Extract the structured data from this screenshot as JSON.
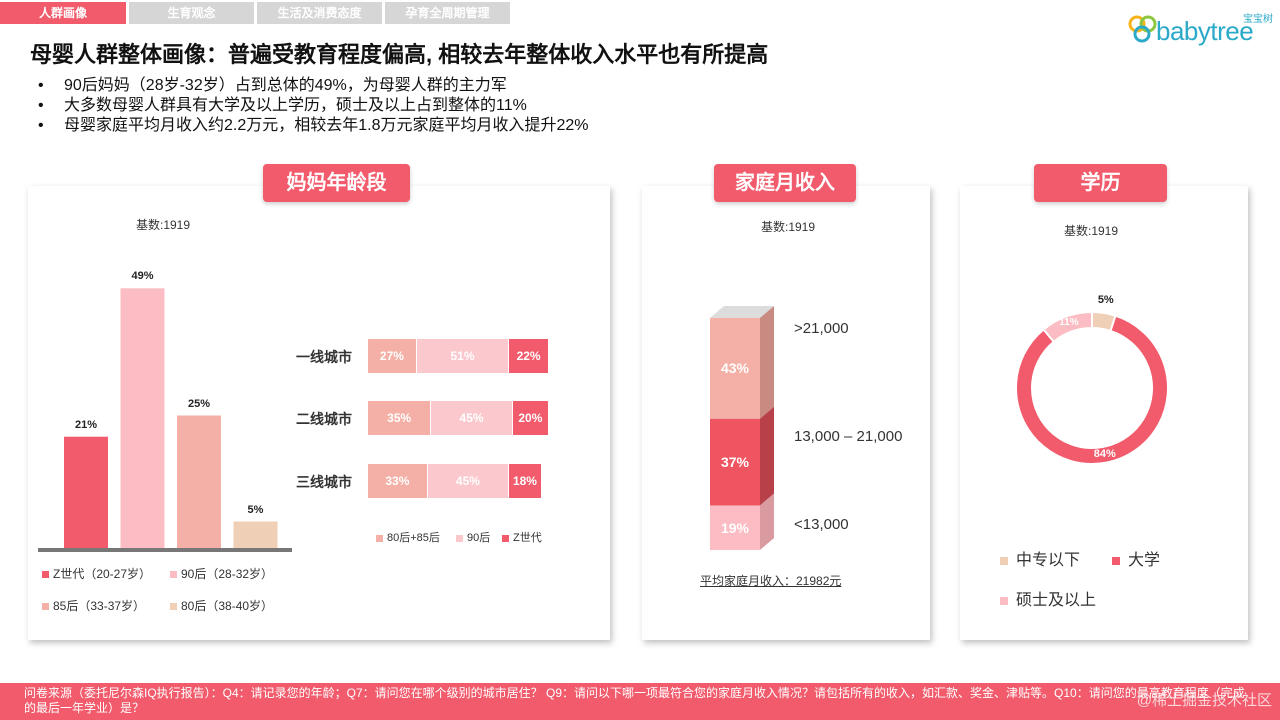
{
  "tabs": [
    "人群画像",
    "生育观念",
    "生活及消费态度",
    "孕育全周期管理"
  ],
  "logo": {
    "small": "宝宝树",
    "text": "babytree"
  },
  "title": "母婴人群整体画像：普遍受教育程度偏高, 相较去年整体收入水平也有所提高",
  "bullets": [
    "90后妈妈（28岁-32岁）占到总体的49%，为母婴人群的主力军",
    "大多数母婴人群具有大学及以上学历，硕士及以上占到整体的11%",
    "母婴家庭平均月收入约2.2万元，相较去年1.8万元家庭平均月收入提升22%"
  ],
  "bullet_marker": "•",
  "age_panel": {
    "title": "妈妈年龄段",
    "base": "基数:1919"
  },
  "income_panel": {
    "title": "家庭月收入",
    "base": "基数:1919",
    "avg_note": "平均家庭月收入：21982元"
  },
  "edu_panel": {
    "title": "学历",
    "base": "基数:1919"
  },
  "footer": "问卷来源（委托尼尔森IQ执行报告）：Q4：请记录您的年龄；Q7：请问您在哪个级别的城市居住？ Q9：请问以下哪一项最符合您的家庭月收入情况？请包括所有的收入，如汇款、奖金、津贴等。Q10：请问您的最高教育程度（完成的最后一年学业）是？",
  "watermark": "@稀土掘金技术社区",
  "chart_data": [
    {
      "type": "bar",
      "title": "妈妈年龄段",
      "categories": [
        "Z世代（20-27岁）",
        "90后（28-32岁）",
        "85后（33-37岁）",
        "80后（38-40岁）"
      ],
      "values": [
        21,
        49,
        25,
        5
      ],
      "labels": [
        "21%",
        "49%",
        "25%",
        "5%"
      ],
      "colors": [
        "#f15b6c",
        "#fbbdc3",
        "#f4b0a6",
        "#efcfb5"
      ],
      "ylim": [
        0,
        50
      ]
    },
    {
      "type": "bar",
      "stacked": true,
      "orientation": "horizontal",
      "categories": [
        "一线城市",
        "二线城市",
        "三线城市"
      ],
      "series": [
        {
          "name": "80后+85后",
          "values": [
            27,
            35,
            33
          ],
          "labels": [
            "27%",
            "35%",
            "33%"
          ],
          "color": "#f4b0a6"
        },
        {
          "name": "90后",
          "values": [
            51,
            45,
            45
          ],
          "labels": [
            "51%",
            "45%",
            "45%"
          ],
          "color": "#fbc9cd"
        },
        {
          "name": "Z世代",
          "values": [
            22,
            20,
            18
          ],
          "labels": [
            "22%",
            "20%",
            "18%"
          ],
          "color": "#f15b6c"
        }
      ]
    },
    {
      "type": "bar",
      "stacked": true,
      "title": "家庭月收入",
      "categories": [
        ">21,000",
        "13,000 – 21,000",
        "<13,000"
      ],
      "values": [
        43,
        37,
        19
      ],
      "labels": [
        "43%",
        "37%",
        "19%"
      ],
      "colors": [
        "#f4b0a6",
        "#ef5560",
        "#fbbdc3"
      ]
    },
    {
      "type": "pie",
      "title": "学历",
      "donut": true,
      "categories": [
        "中专以下",
        "大学",
        "硕士及以上"
      ],
      "values": [
        5,
        84,
        11
      ],
      "labels": [
        "5%",
        "84%",
        "11%"
      ],
      "colors": [
        "#efcfb5",
        "#f15b6c",
        "#fbbdc3"
      ]
    }
  ]
}
